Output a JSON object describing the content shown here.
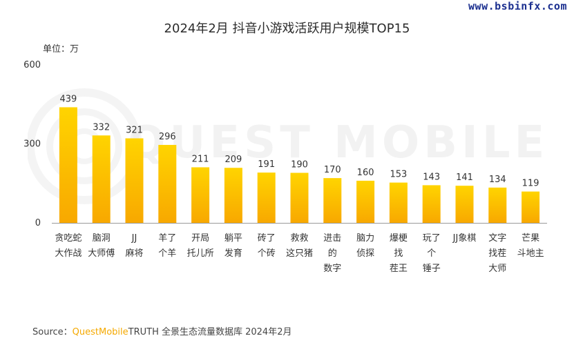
{
  "watermark_url": "www.bsbinfx.com",
  "unit_label": "单位：万",
  "source": {
    "prefix": "Source：",
    "brand": "QuestMobile",
    "rest": "TRUTH 全景生态流量数据库 2024年2月"
  },
  "background_watermark": "QUEST MOBILE",
  "colors": {
    "bar_top": "#ffd400",
    "bar_bottom": "#f8a800",
    "axis": "#999999",
    "text": "#333333"
  },
  "chart_data": {
    "type": "bar",
    "title": "2024年2月 抖音小游戏活跃用户规模TOP15",
    "ylabel": "",
    "xlabel": "",
    "ylim": [
      0,
      600
    ],
    "yticks": [
      0,
      300,
      600
    ],
    "categories": [
      [
        "贪吃蛇",
        "大作战"
      ],
      [
        "脑洞",
        "大师傅"
      ],
      [
        "JJ",
        "麻将"
      ],
      [
        "羊了",
        "个羊"
      ],
      [
        "开局",
        "托儿所"
      ],
      [
        "躺平",
        "发育"
      ],
      [
        "砖了",
        "个砖"
      ],
      [
        "救救",
        "这只猪"
      ],
      [
        "进击",
        "的",
        "数字"
      ],
      [
        "脑力",
        "侦探"
      ],
      [
        "爆梗",
        "找",
        "茬王"
      ],
      [
        "玩了",
        "个",
        "锤子"
      ],
      [
        "JJ象棋"
      ],
      [
        "文字",
        "找茬",
        "大师"
      ],
      [
        "芒果",
        "斗地主"
      ]
    ],
    "values": [
      439,
      332,
      321,
      296,
      211,
      209,
      191,
      190,
      170,
      160,
      153,
      143,
      141,
      134,
      119
    ]
  }
}
